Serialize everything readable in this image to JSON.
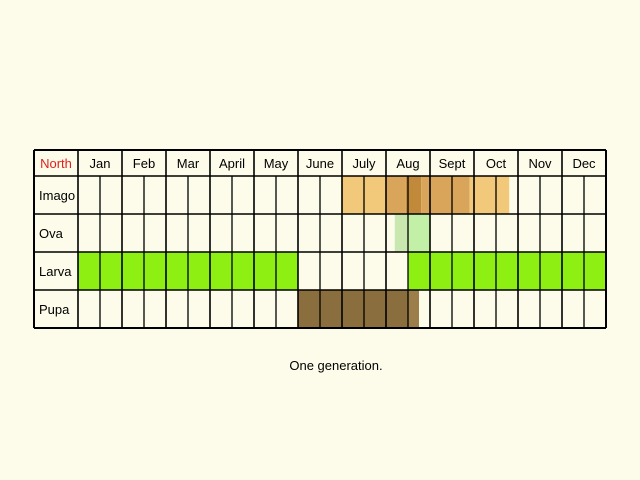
{
  "region_label": "North",
  "months": [
    "Jan",
    "Feb",
    "Mar",
    "April",
    "May",
    "June",
    "July",
    "Aug",
    "Sept",
    "Oct",
    "Nov",
    "Dec"
  ],
  "caption": "One generation.",
  "colors": {
    "background": "#fdfcea",
    "region_label": "#e0201b",
    "grid": "#000000"
  },
  "stages": [
    {
      "name": "Imago",
      "spans": [
        {
          "from_month": 6.0,
          "to_month": 7.0,
          "color": "#f2c87a"
        },
        {
          "from_month": 7.0,
          "to_month": 7.45,
          "color": "#d9a55a"
        },
        {
          "from_month": 7.45,
          "to_month": 7.8,
          "color": "#c08a3a"
        },
        {
          "from_month": 7.8,
          "to_month": 8.9,
          "color": "#d9a55a"
        },
        {
          "from_month": 8.9,
          "to_month": 9.8,
          "color": "#f2c87a"
        }
      ]
    },
    {
      "name": "Ova",
      "spans": [
        {
          "from_month": 7.2,
          "to_month": 7.5,
          "color": "#c9e8b0"
        },
        {
          "from_month": 7.5,
          "to_month": 8.0,
          "color": "#c2f0a6"
        }
      ]
    },
    {
      "name": "Larva",
      "spans": [
        {
          "from_month": 0.0,
          "to_month": 5.0,
          "color": "#8ef012"
        },
        {
          "from_month": 7.5,
          "to_month": 12.0,
          "color": "#8ef012"
        }
      ]
    },
    {
      "name": "Pupa",
      "spans": [
        {
          "from_month": 5.0,
          "to_month": 7.5,
          "color": "#8a6e3e"
        },
        {
          "from_month": 7.5,
          "to_month": 7.75,
          "color": "#9b7e4a"
        }
      ]
    }
  ]
}
